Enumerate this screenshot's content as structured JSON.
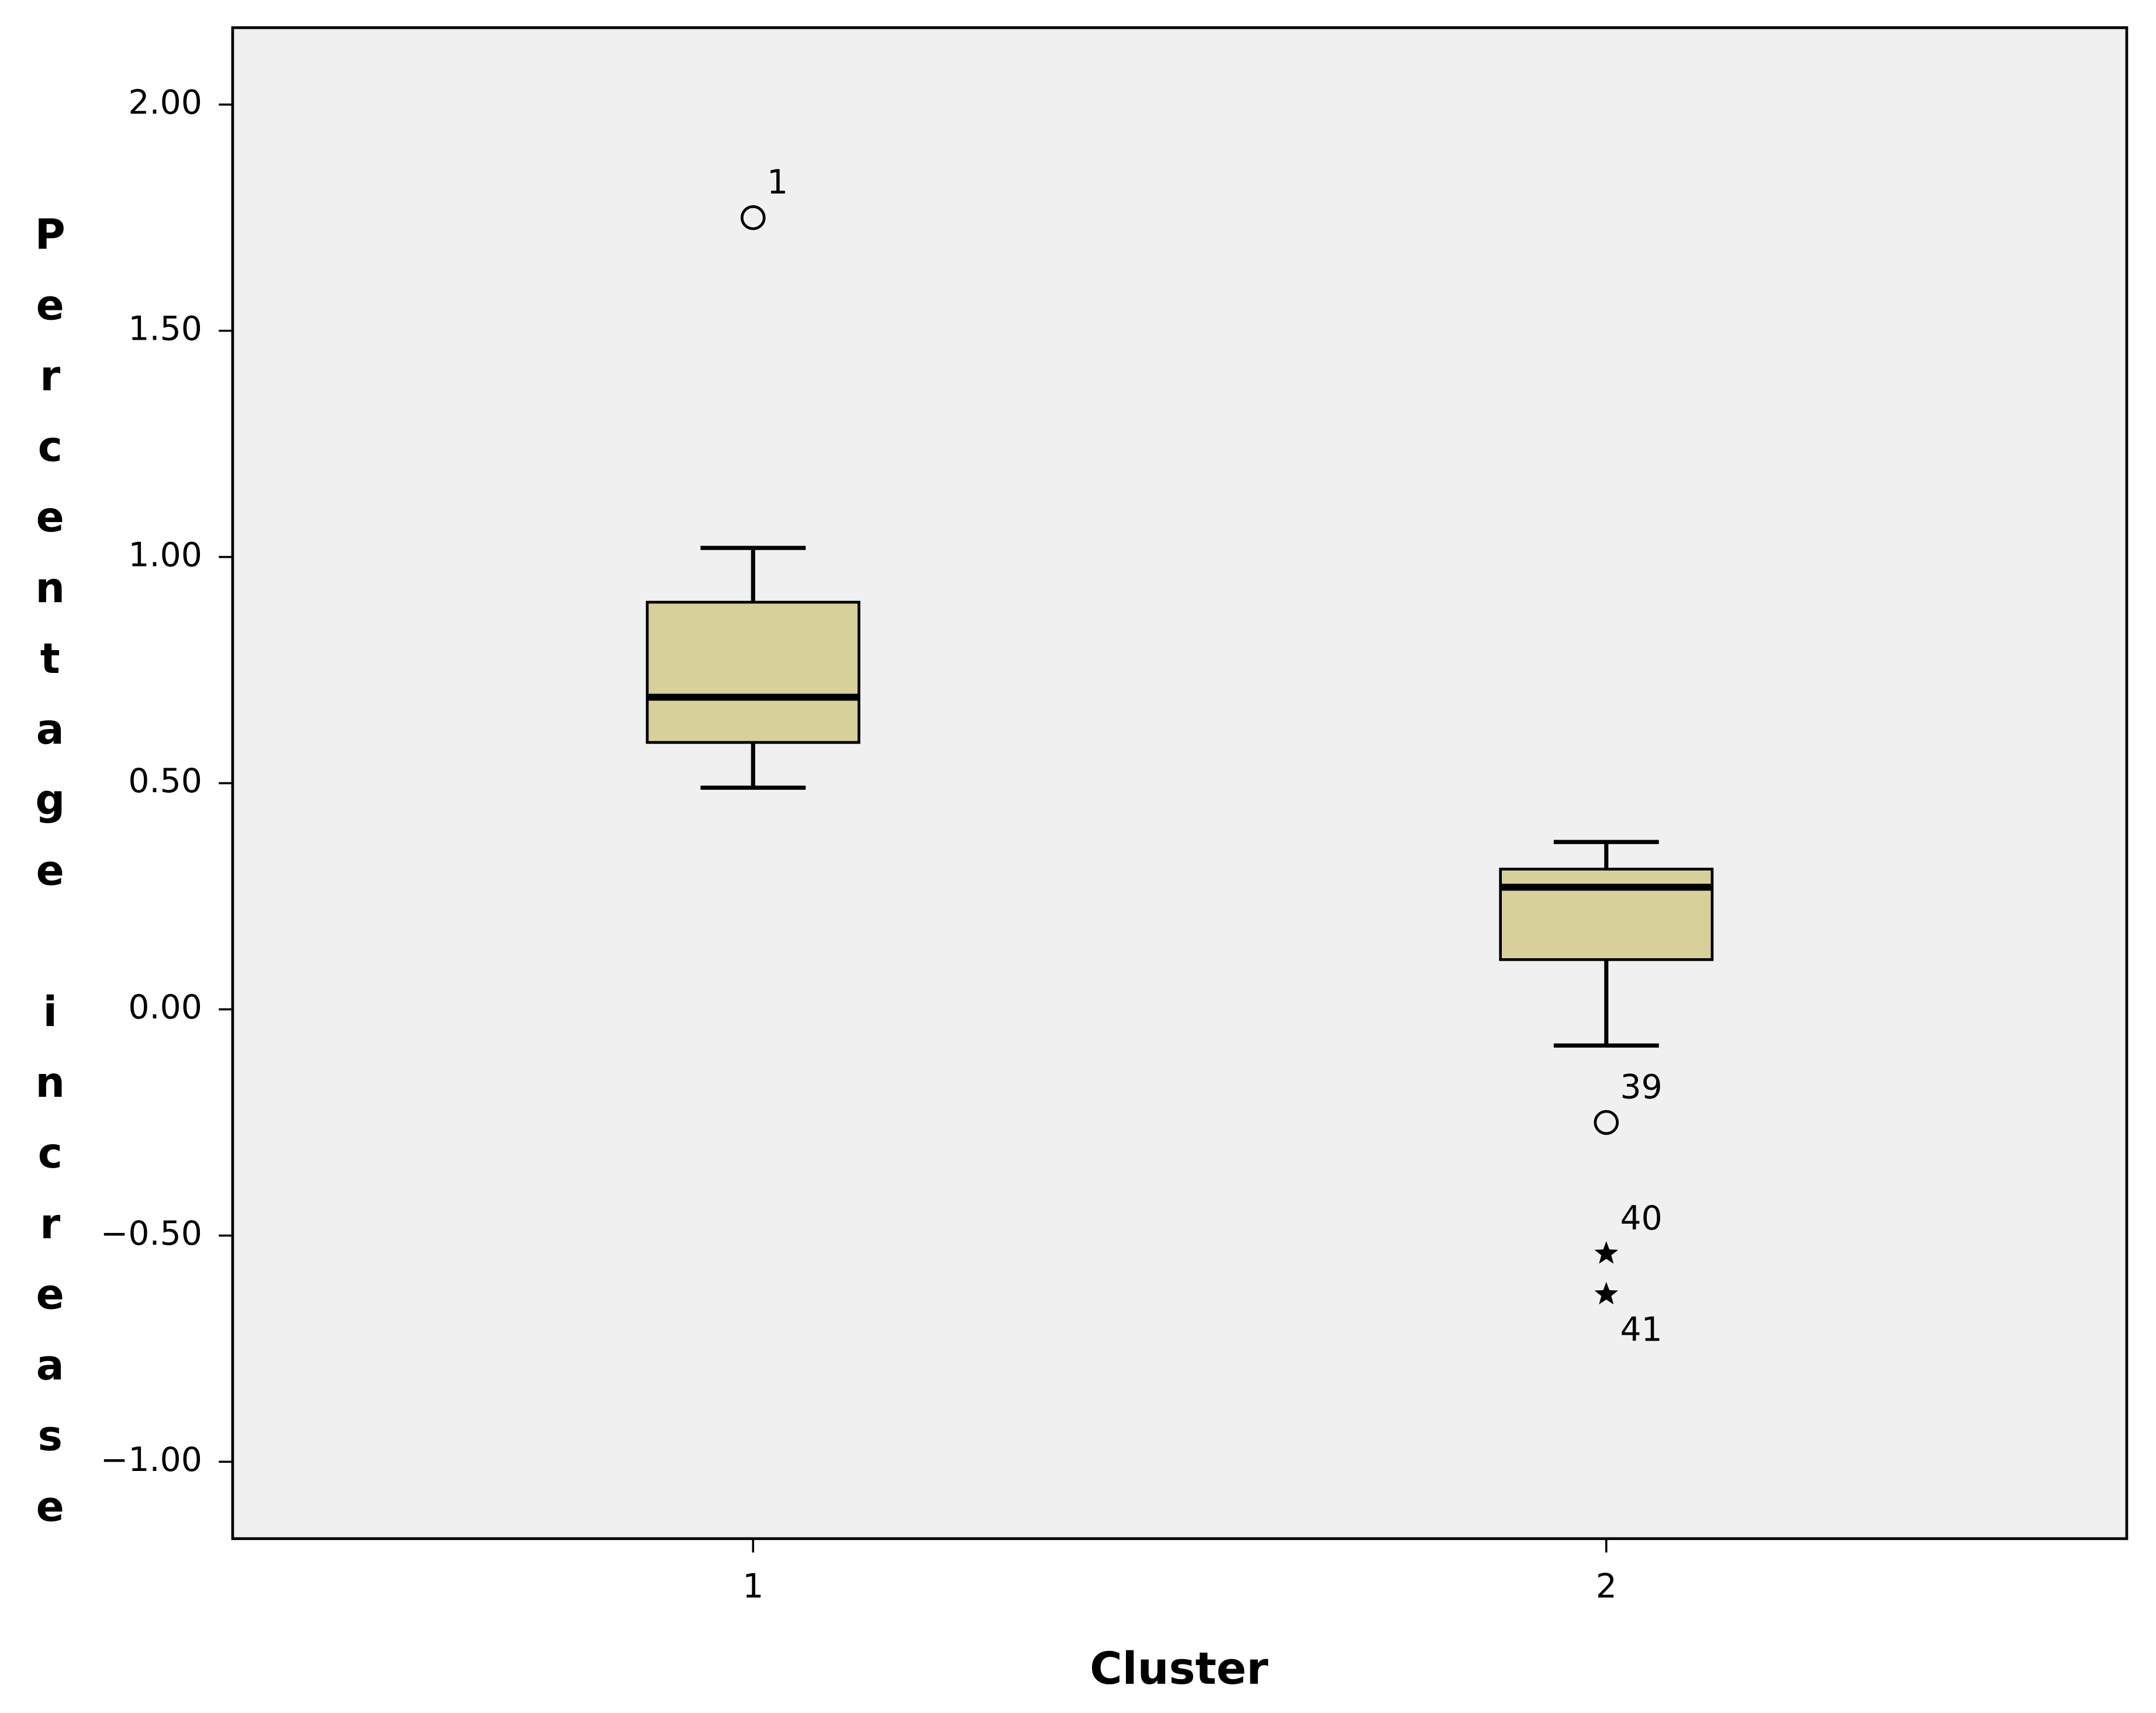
{
  "chart_data": {
    "type": "box",
    "x_label": "Cluster",
    "y_label": "Percentage increase",
    "categories": [
      "1",
      "2"
    ],
    "color": "#d7d09a",
    "plot_background": "#f0f0f0",
    "ylim": [
      -1.17,
      2.17
    ],
    "yticks": [
      {
        "value": 2,
        "label": "2.00"
      },
      {
        "value": 1.5,
        "label": "1.50"
      },
      {
        "value": 1,
        "label": "1.00"
      },
      {
        "value": 0.5,
        "label": "0.50"
      },
      {
        "value": 0,
        "label": "0.00"
      },
      {
        "value": -0.5,
        "label": "−0.50"
      },
      {
        "value": -1,
        "label": "−1.00"
      }
    ],
    "boxes": [
      {
        "whisker_low": 0.49,
        "q1": 0.59,
        "median": 0.69,
        "q3": 0.9,
        "whisker_high": 1.02,
        "outliers": [
          {
            "value": 1.75,
            "label": "1",
            "marker": "circle"
          }
        ]
      },
      {
        "whisker_low": -0.08,
        "q1": 0.11,
        "median": 0.27,
        "q3": 0.31,
        "whisker_high": 0.37,
        "outliers": [
          {
            "value": -0.25,
            "label": "39",
            "marker": "circle"
          },
          {
            "value": -0.54,
            "label": "40",
            "marker": "star"
          },
          {
            "value": -0.63,
            "label": "41",
            "marker": "star"
          }
        ]
      }
    ]
  }
}
